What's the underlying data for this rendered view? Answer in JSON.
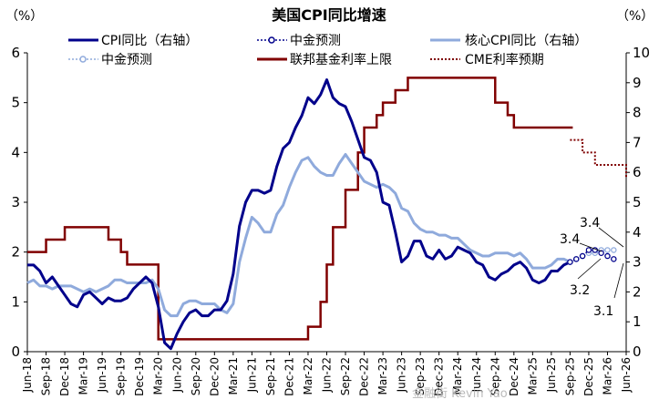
{
  "chart_data": {
    "type": "line",
    "title": "美国CPI同比增速",
    "left_unit": "（%）",
    "right_unit": "（%）",
    "left_axis": {
      "min": 0,
      "max": 6,
      "ticks": [
        "0",
        "1",
        "2",
        "3",
        "4",
        "5",
        "6"
      ]
    },
    "right_axis": {
      "min": 0,
      "max": 10,
      "ticks": [
        "0",
        "1",
        "2",
        "3",
        "4",
        "5",
        "6",
        "7",
        "8",
        "9",
        "10"
      ]
    },
    "x_start": "2018-06",
    "x_end": "2026-06",
    "x_tick_labels": [
      "Jun-18",
      "Sep-18",
      "Dec-18",
      "Mar-19",
      "Jun-19",
      "Sep-19",
      "Dec-19",
      "Mar-20",
      "Jun-20",
      "Sep-20",
      "Dec-20",
      "Mar-21",
      "Jun-21",
      "Sep-21",
      "Dec-21",
      "Mar-22",
      "Jun-22",
      "Sep-22",
      "Dec-22",
      "Mar-23",
      "Jun-23",
      "Sep-23",
      "Dec-23",
      "Mar-24",
      "Jun-24",
      "Sep-24",
      "Dec-24",
      "Mar-25",
      "Jun-25",
      "Sep-25",
      "Dec-25",
      "Mar-26",
      "Jun-26"
    ],
    "legend": [
      {
        "name": "CPI同比（右轴）",
        "color": "#00008B",
        "style": "solid"
      },
      {
        "name": "中金预测",
        "color": "#00008B",
        "style": "dotted-marker"
      },
      {
        "name": "核心CPI同比（右轴）",
        "color": "#8FAADC",
        "style": "solid"
      },
      {
        "name": "中金预测",
        "color": "#8FAADC",
        "style": "dotted-marker"
      },
      {
        "name": "联邦基金利率上限",
        "color": "#800000",
        "style": "step"
      },
      {
        "name": "CME利率预期",
        "color": "#800000",
        "style": "dotted"
      }
    ],
    "annotations": [
      "3.4",
      "3.4",
      "3.2",
      "3.1"
    ],
    "series": [
      {
        "name": "CPI同比（右轴）",
        "axis": "right",
        "color": "#00008B",
        "x": [
          "2018-06",
          "2018-07",
          "2018-08",
          "2018-09",
          "2018-10",
          "2018-11",
          "2018-12",
          "2019-01",
          "2019-02",
          "2019-03",
          "2019-04",
          "2019-05",
          "2019-06",
          "2019-07",
          "2019-08",
          "2019-09",
          "2019-10",
          "2019-11",
          "2019-12",
          "2020-01",
          "2020-02",
          "2020-03",
          "2020-04",
          "2020-05",
          "2020-06",
          "2020-07",
          "2020-08",
          "2020-09",
          "2020-10",
          "2020-11",
          "2020-12",
          "2021-01",
          "2021-02",
          "2021-03",
          "2021-04",
          "2021-05",
          "2021-06",
          "2021-07",
          "2021-08",
          "2021-09",
          "2021-10",
          "2021-11",
          "2021-12",
          "2022-01",
          "2022-02",
          "2022-03",
          "2022-04",
          "2022-05",
          "2022-06",
          "2022-07",
          "2022-08",
          "2022-09",
          "2022-10",
          "2022-11",
          "2022-12",
          "2023-01",
          "2023-02",
          "2023-03",
          "2023-04",
          "2023-05",
          "2023-06",
          "2023-07",
          "2023-08",
          "2023-09",
          "2023-10",
          "2023-11",
          "2023-12",
          "2024-01",
          "2024-02",
          "2024-03",
          "2024-04",
          "2024-05",
          "2024-06",
          "2024-07",
          "2024-08",
          "2024-09",
          "2024-10",
          "2024-11",
          "2024-12",
          "2025-01",
          "2025-02",
          "2025-03",
          "2025-04",
          "2025-05",
          "2025-06",
          "2025-07",
          "2025-08",
          "2025-09"
        ],
        "values": [
          2.9,
          2.9,
          2.7,
          2.3,
          2.5,
          2.2,
          1.9,
          1.6,
          1.5,
          1.9,
          2.0,
          1.8,
          1.6,
          1.8,
          1.7,
          1.7,
          1.8,
          2.1,
          2.3,
          2.5,
          2.3,
          1.5,
          0.3,
          0.1,
          0.6,
          1.0,
          1.3,
          1.4,
          1.2,
          1.2,
          1.4,
          1.4,
          1.7,
          2.6,
          4.2,
          5.0,
          5.4,
          5.4,
          5.3,
          5.4,
          6.2,
          6.8,
          7.0,
          7.5,
          7.9,
          8.5,
          8.3,
          8.6,
          9.1,
          8.5,
          8.3,
          8.2,
          7.7,
          7.1,
          6.5,
          6.4,
          6.0,
          5.0,
          4.9,
          4.0,
          3.0,
          3.2,
          3.7,
          3.7,
          3.2,
          3.1,
          3.4,
          3.1,
          3.2,
          3.5,
          3.4,
          3.3,
          3.0,
          2.9,
          2.5,
          2.4,
          2.6,
          2.7,
          2.9,
          3.0,
          2.8,
          2.4,
          2.3,
          2.4,
          2.7,
          2.7,
          2.9,
          3.0
        ]
      },
      {
        "name": "中金预测 (CPI)",
        "axis": "right",
        "color": "#00008B",
        "x": [
          "2025-09",
          "2025-10",
          "2025-11",
          "2025-12",
          "2026-01",
          "2026-02",
          "2026-03",
          "2026-04"
        ],
        "values": [
          3.0,
          3.1,
          3.2,
          3.4,
          3.4,
          3.3,
          3.2,
          3.1
        ]
      },
      {
        "name": "核心CPI同比（右轴）",
        "axis": "right",
        "color": "#8FAADC",
        "x": [
          "2018-06",
          "2018-07",
          "2018-08",
          "2018-09",
          "2018-10",
          "2018-11",
          "2018-12",
          "2019-01",
          "2019-02",
          "2019-03",
          "2019-04",
          "2019-05",
          "2019-06",
          "2019-07",
          "2019-08",
          "2019-09",
          "2019-10",
          "2019-11",
          "2019-12",
          "2020-01",
          "2020-02",
          "2020-03",
          "2020-04",
          "2020-05",
          "2020-06",
          "2020-07",
          "2020-08",
          "2020-09",
          "2020-10",
          "2020-11",
          "2020-12",
          "2021-01",
          "2021-02",
          "2021-03",
          "2021-04",
          "2021-05",
          "2021-06",
          "2021-07",
          "2021-08",
          "2021-09",
          "2021-10",
          "2021-11",
          "2021-12",
          "2022-01",
          "2022-02",
          "2022-03",
          "2022-04",
          "2022-05",
          "2022-06",
          "2022-07",
          "2022-08",
          "2022-09",
          "2022-10",
          "2022-11",
          "2022-12",
          "2023-01",
          "2023-02",
          "2023-03",
          "2023-04",
          "2023-05",
          "2023-06",
          "2023-07",
          "2023-08",
          "2023-09",
          "2023-10",
          "2023-11",
          "2023-12",
          "2024-01",
          "2024-02",
          "2024-03",
          "2024-04",
          "2024-05",
          "2024-06",
          "2024-07",
          "2024-08",
          "2024-09",
          "2024-10",
          "2024-11",
          "2024-12",
          "2025-01",
          "2025-02",
          "2025-03",
          "2025-04",
          "2025-05",
          "2025-06",
          "2025-07",
          "2025-08",
          "2025-09"
        ],
        "values": [
          2.3,
          2.4,
          2.2,
          2.2,
          2.1,
          2.2,
          2.2,
          2.2,
          2.1,
          2.0,
          2.1,
          2.0,
          2.1,
          2.2,
          2.4,
          2.4,
          2.3,
          2.3,
          2.3,
          2.3,
          2.4,
          2.1,
          1.4,
          1.2,
          1.2,
          1.6,
          1.7,
          1.7,
          1.6,
          1.6,
          1.6,
          1.4,
          1.3,
          1.6,
          3.0,
          3.8,
          4.5,
          4.3,
          4.0,
          4.0,
          4.6,
          4.9,
          5.5,
          6.0,
          6.4,
          6.5,
          6.2,
          6.0,
          5.9,
          5.9,
          6.3,
          6.6,
          6.3,
          6.0,
          5.7,
          5.6,
          5.5,
          5.6,
          5.5,
          5.3,
          4.8,
          4.7,
          4.3,
          4.1,
          4.0,
          4.0,
          3.9,
          3.9,
          3.8,
          3.8,
          3.6,
          3.4,
          3.3,
          3.2,
          3.2,
          3.3,
          3.3,
          3.3,
          3.2,
          3.3,
          3.1,
          2.8,
          2.8,
          2.8,
          2.9,
          3.1,
          3.1,
          3.0
        ]
      },
      {
        "name": "中金预测 (核心CPI)",
        "axis": "right",
        "color": "#8FAADC",
        "x": [
          "2025-09",
          "2025-10",
          "2025-11",
          "2025-12",
          "2026-01",
          "2026-02",
          "2026-03",
          "2026-04"
        ],
        "values": [
          3.0,
          3.1,
          3.2,
          3.3,
          3.3,
          3.4,
          3.4,
          3.4
        ]
      },
      {
        "name": "联邦基金利率上限",
        "axis": "left",
        "color": "#800000",
        "step": true,
        "x": [
          "2018-06",
          "2018-09",
          "2018-12",
          "2019-07",
          "2019-09",
          "2019-10",
          "2020-03",
          "2022-03",
          "2022-05",
          "2022-06",
          "2022-07",
          "2022-09",
          "2022-11",
          "2022-12",
          "2023-02",
          "2023-03",
          "2023-05",
          "2023-07",
          "2024-09",
          "2024-11",
          "2024-12",
          "2025-09"
        ],
        "values": [
          2.0,
          2.25,
          2.5,
          2.25,
          2.0,
          1.75,
          0.25,
          0.5,
          1.0,
          1.75,
          2.5,
          3.25,
          4.0,
          4.5,
          4.75,
          5.0,
          5.25,
          5.5,
          5.0,
          4.75,
          4.5,
          4.5
        ]
      },
      {
        "name": "CME利率预期",
        "axis": "left",
        "color": "#800000",
        "step": true,
        "x": [
          "2025-09",
          "2025-10",
          "2025-11",
          "2025-12",
          "2026-01",
          "2026-02",
          "2026-03",
          "2026-04",
          "2026-05",
          "2026-06"
        ],
        "values": [
          4.25,
          4.25,
          4.0,
          4.0,
          3.75,
          3.75,
          3.75,
          3.75,
          3.75,
          3.5
        ]
      }
    ],
    "watermark": "金融街 Kevin Yao"
  }
}
